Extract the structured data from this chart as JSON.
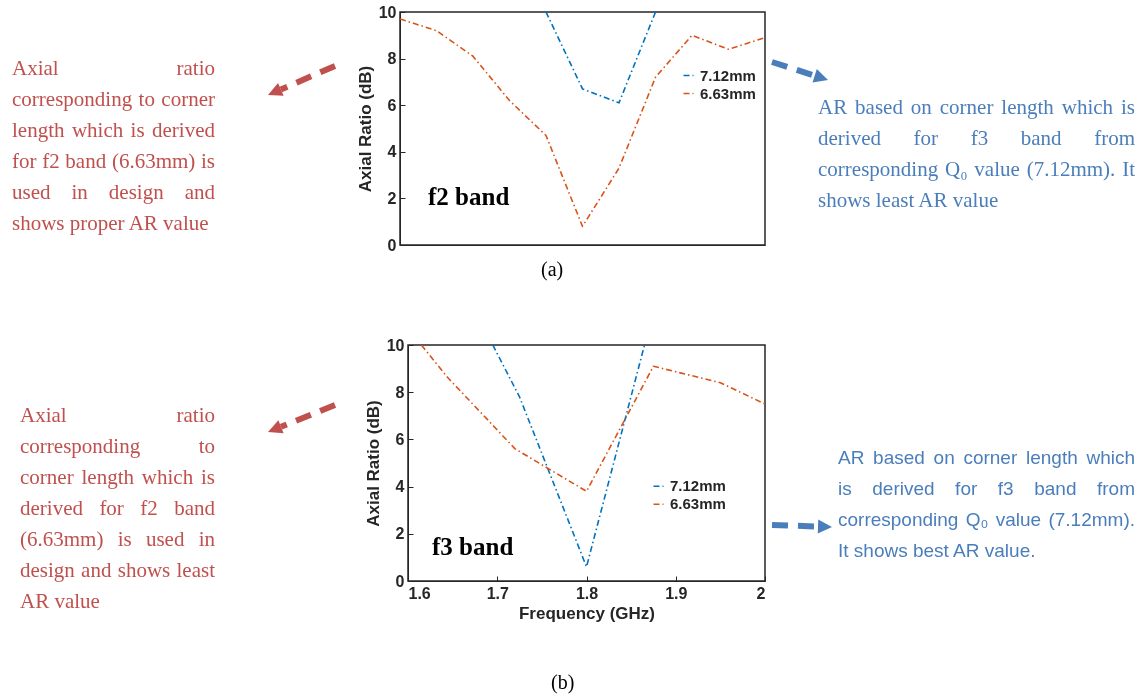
{
  "chart_data": [
    {
      "type": "line",
      "ylabel": "Axial Ratio (dB)",
      "categories": [
        null,
        null,
        null,
        null,
        null,
        null,
        null,
        null,
        null,
        null,
        null
      ],
      "ylim": [
        0,
        10
      ],
      "yticks": [
        0,
        2,
        4,
        6,
        8,
        10
      ],
      "tick_labels": "y",
      "legend": "top right",
      "line_style": "dashed",
      "grid": false,
      "series": [
        {
          "name": "7.12mm",
          "color": "#0072bd",
          "values": [
            null,
            null,
            null,
            null,
            10,
            6.7,
            6.1,
            10,
            null,
            null,
            null
          ]
        },
        {
          "name": "6.63mm",
          "color": "#d95319",
          "values": [
            9.7,
            9.2,
            8.1,
            6.2,
            4.7,
            0.8,
            3.3,
            7.2,
            9.0,
            8.4,
            8.9
          ]
        }
      ],
      "annotations": [
        "Axial ratio corresponding to corner length which is derived for f2 band (6.63mm) is used in design and shows proper AR value",
        "AR based on corner length which is derived for f3 band from corresponding Q₀ value (7.12mm). It shows least AR value",
        "f2 band",
        "(a)"
      ]
    },
    {
      "type": "line",
      "xlabel": "Frequency (GHz)",
      "ylabel": "Axial Ratio (dB)",
      "xlim": [
        1.6,
        2
      ],
      "xticks": [
        1.6,
        1.7,
        1.8,
        1.9,
        2
      ],
      "ylim": [
        0,
        10
      ],
      "yticks": [
        0,
        2,
        4,
        6,
        8,
        10
      ],
      "legend": "right",
      "line_style": "dashed",
      "grid": false,
      "series": [
        {
          "name": "7.12mm",
          "color": "#0072bd",
          "x": [
            1.695,
            1.725,
            1.8,
            1.865
          ],
          "values": [
            10,
            7.8,
            0.6,
            10
          ]
        },
        {
          "name": "6.63mm",
          "color": "#d95319",
          "x": [
            1.615,
            1.645,
            1.72,
            1.8,
            1.875,
            1.95,
            2.0
          ],
          "values": [
            10,
            8.6,
            5.6,
            3.8,
            9.1,
            8.4,
            7.5
          ]
        }
      ],
      "annotations": [
        "Axial ratio corresponding to corner length which is derived for f2 band (6.63mm) is used in design and shows least AR value",
        "AR based on corner length which is derived for f3 band from corresponding Q₀ value (7.12mm). It shows best AR value.",
        "f3 band",
        "(b)"
      ]
    }
  ]
}
